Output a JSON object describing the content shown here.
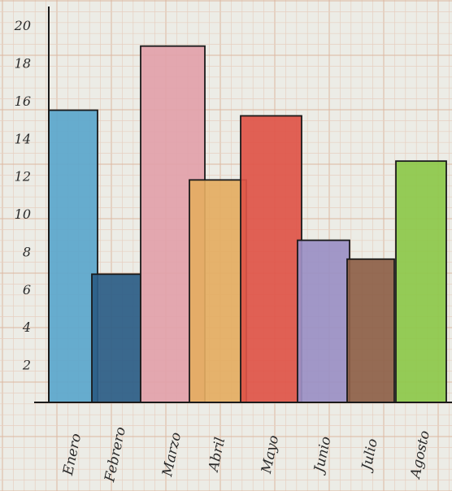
{
  "chart_data": {
    "type": "bar",
    "title": "",
    "xlabel": "",
    "ylabel": "",
    "categories": [
      "Enero",
      "Febrero",
      "Marzo",
      "Abril",
      "Mayo",
      "Junio",
      "Julio",
      "Agosto"
    ],
    "values": [
      15.5,
      6.8,
      18.9,
      11.8,
      15.2,
      8.6,
      7.6,
      12.8
    ],
    "colors": [
      "#5aa6cc",
      "#2a5c86",
      "#e2a1aa",
      "#e4ac62",
      "#de5448",
      "#9a8fc4",
      "#8d5f48",
      "#8cc84a"
    ],
    "yticks": [
      "2",
      "4",
      "6",
      "8",
      "10",
      "12",
      "14",
      "16",
      "18",
      "20"
    ],
    "ylim": [
      0,
      21
    ],
    "grid": true,
    "legend": "none"
  }
}
